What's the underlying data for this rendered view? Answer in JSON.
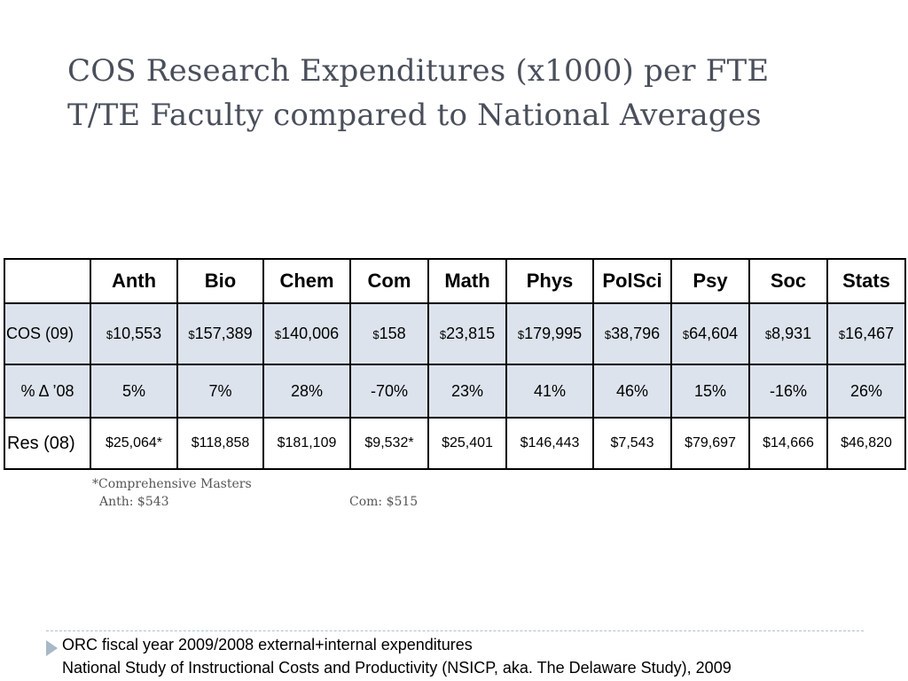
{
  "title": {
    "line1": "COS Research Expenditures (x1000) per FTE",
    "line2": "T/TE Faculty compared to National Averages"
  },
  "table": {
    "columns": [
      "Anth",
      "Bio",
      "Chem",
      "Com",
      "Math",
      "Phys",
      "PolSci",
      "Psy",
      "Soc",
      "Stats"
    ],
    "currency_symbol": "$",
    "rows": [
      {
        "label": "COS (09)",
        "cells": [
          "10,553",
          "157,389",
          "140,006",
          "158",
          "23,815",
          "179,995",
          "38,796",
          "64,604",
          "8,931",
          "16,467"
        ]
      },
      {
        "label": "% Δ ’08",
        "cells": [
          "5%",
          "7%",
          "28%",
          "-70%",
          "23%",
          "41%",
          "46%",
          "15%",
          "-16%",
          "26%"
        ]
      },
      {
        "label": "Res (08)",
        "cells": [
          "$25,064*",
          "$118,858",
          "$181,109",
          "$9,532*",
          "$25,401",
          "$146,443",
          "$7,543",
          "$79,697",
          "$14,666",
          "$46,820"
        ]
      }
    ]
  },
  "footnote": {
    "heading": "*Comprehensive Masters",
    "anth": "Anth: $543",
    "com": "Com: $515"
  },
  "sources": {
    "line1": "ORC fiscal year 2009/2008 external+internal expenditures",
    "line2": "National Study of Instructional Costs and Productivity (NSICP, aka. The Delaware Study), 2009"
  },
  "colors": {
    "title": "#4a4f5b",
    "row_shade": "#dce3ec",
    "bullet": "#a8b8c8"
  }
}
